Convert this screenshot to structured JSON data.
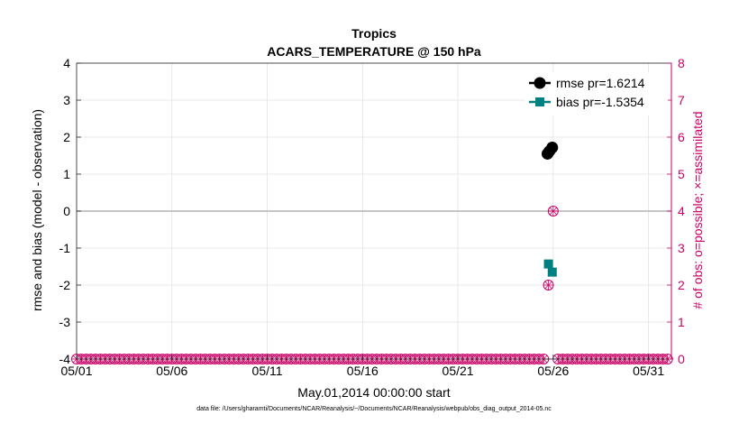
{
  "chart_data": {
    "type": "scatter",
    "title": "Tropics",
    "subtitle": "ACARS_TEMPERATURE @ 150 hPa",
    "xlabel": "May.01,2014 00:00:00 start",
    "ylabel_left": "rmse and bias (model - observation)",
    "ylabel_right": "# of obs: o=possible; ×=assimilated",
    "ylim_left": [
      -4,
      4
    ],
    "ylim_right": [
      0,
      8
    ],
    "xlim": [
      0,
      31.2
    ],
    "yticks_left": [
      "-4",
      "-3",
      "-2",
      "-1",
      "0",
      "1",
      "2",
      "3",
      "4"
    ],
    "yticks_right": [
      "0",
      "1",
      "2",
      "3",
      "4",
      "5",
      "6",
      "7",
      "8"
    ],
    "xticks": [
      {
        "x": 0,
        "label": "05/01"
      },
      {
        "x": 5,
        "label": "05/06"
      },
      {
        "x": 10,
        "label": "05/11"
      },
      {
        "x": 15,
        "label": "05/16"
      },
      {
        "x": 20,
        "label": "05/21"
      },
      {
        "x": 25,
        "label": "05/26"
      },
      {
        "x": 30,
        "label": "05/31"
      }
    ],
    "grid": true,
    "legend_position": "top-right",
    "series": [
      {
        "name": "rmse pr=1.6214",
        "axis": "left",
        "color": "#000000",
        "marker": "circle",
        "x": [
          24.7,
          24.8,
          24.95
        ],
        "y": [
          1.55,
          1.62,
          1.72
        ]
      },
      {
        "name": "bias pr=-1.5354",
        "axis": "left",
        "color": "#008080",
        "marker": "square",
        "x": [
          24.75,
          24.95
        ],
        "y": [
          -1.43,
          -1.65
        ]
      }
    ],
    "obs_counts": {
      "axis": "right",
      "color": "#cc0066",
      "x_start": 0,
      "x_step": 0.25,
      "x_end": 31.0,
      "baseline": 0,
      "gap": [
        24.5,
        25.0
      ],
      "nonzero": [
        {
          "x": 24.75,
          "y": 2
        },
        {
          "x": 25.0,
          "y": 4
        }
      ]
    },
    "colors": {
      "left_axis": "#000000",
      "right_axis": "#cc0066",
      "grid": "#e3e3e3",
      "zero_line": "#b3b3b3"
    }
  },
  "footer": {
    "data_file": "data file: /Users/gharamti/Documents/NCAR/Reanalysis/~/Documents/NCAR/Reanalysis/webpub/obs_diag_output_2014-05.nc"
  }
}
